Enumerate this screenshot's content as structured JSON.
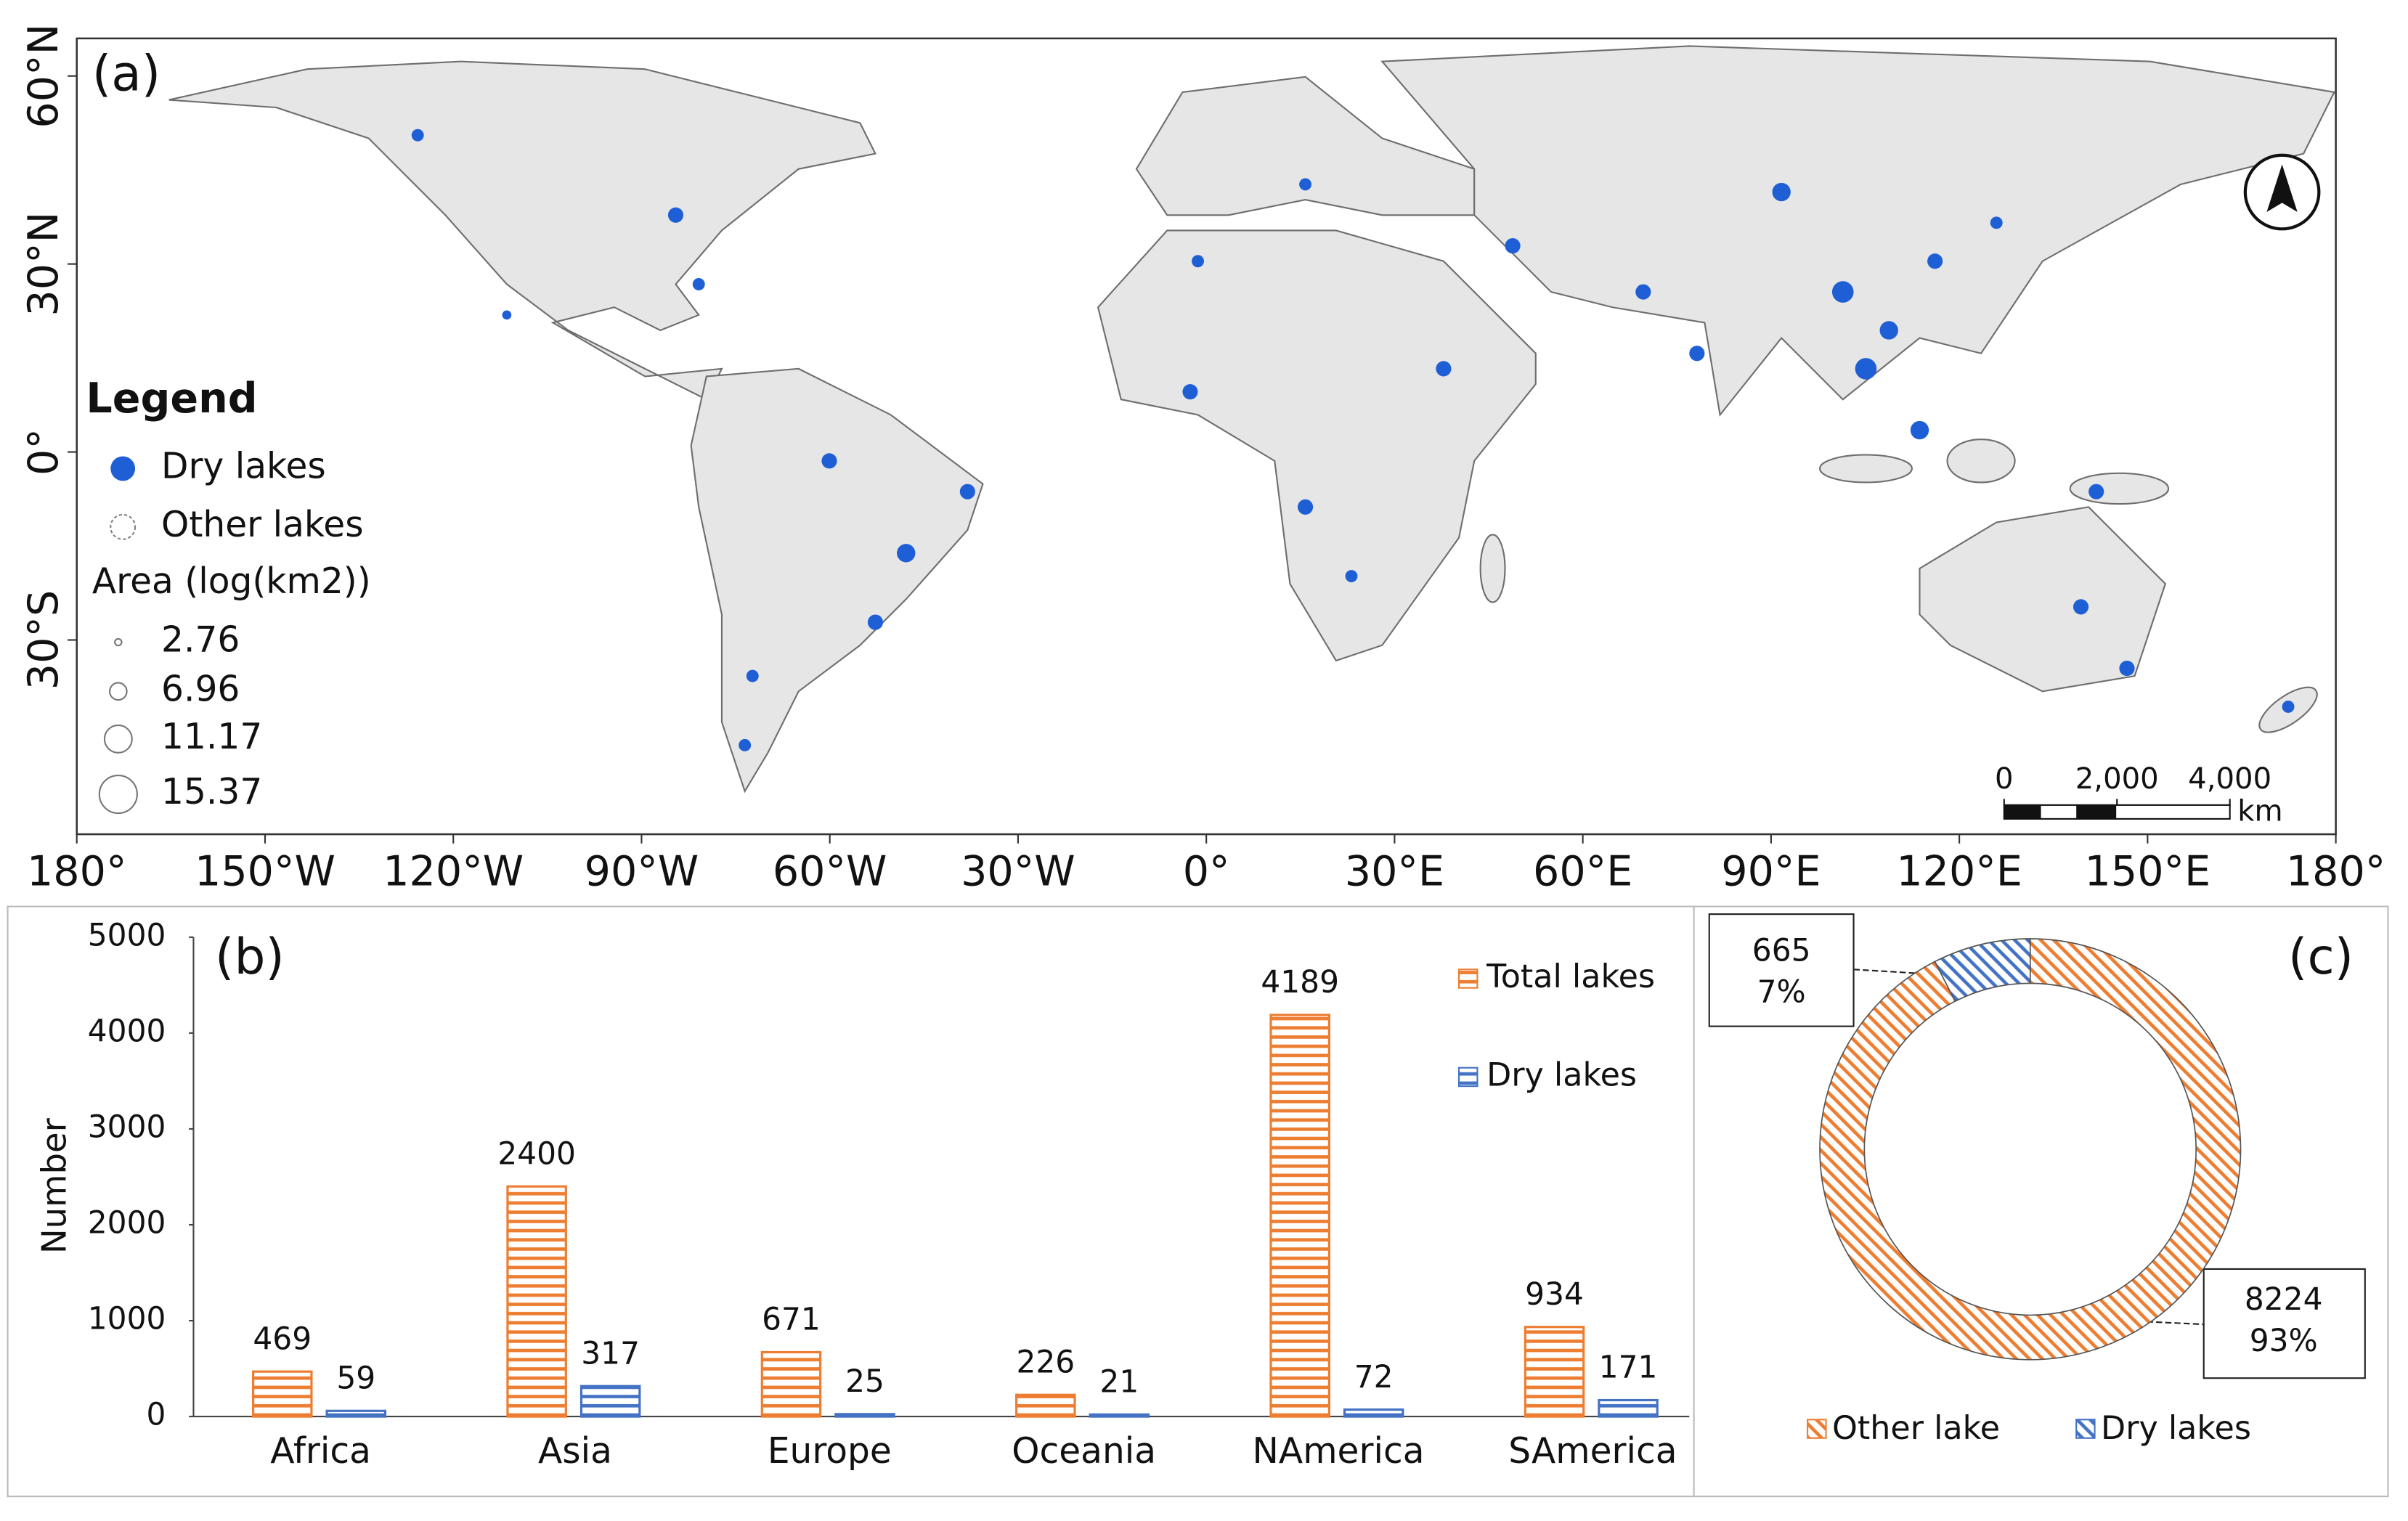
{
  "chart_data": [
    {
      "type": "map",
      "label": "(a)",
      "legend_title": "Legend",
      "legend": [
        {
          "name": "Dry lakes",
          "color": "#1f5fd6"
        },
        {
          "name": "Other lakes",
          "color": "#808080"
        }
      ],
      "size_title": "Area (log(km2))",
      "sizes": [
        2.76,
        6.96,
        11.17,
        15.37
      ],
      "xlim": [
        -180,
        180
      ],
      "ylim": [
        -61,
        66
      ],
      "xticks": [
        {
          "value": -180,
          "label": "180°"
        },
        {
          "value": -150,
          "label": "150°W"
        },
        {
          "value": -120,
          "label": "120°W"
        },
        {
          "value": -90,
          "label": "90°W"
        },
        {
          "value": -60,
          "label": "60°W"
        },
        {
          "value": -30,
          "label": "30°W"
        },
        {
          "value": 0,
          "label": "0°"
        },
        {
          "value": 30,
          "label": "30°E"
        },
        {
          "value": 60,
          "label": "60°E"
        },
        {
          "value": 90,
          "label": "90°E"
        },
        {
          "value": 120,
          "label": "120°E"
        },
        {
          "value": 150,
          "label": "150°E"
        },
        {
          "value": 180,
          "label": "180°"
        }
      ],
      "yticks": [
        {
          "value": 60,
          "label": "60°N"
        },
        {
          "value": 30,
          "label": "30°N"
        },
        {
          "value": 0,
          "label": "0°"
        },
        {
          "value": -30,
          "label": "30°S"
        }
      ],
      "scale_bar": {
        "ticks": [
          0,
          {
            "value": 2000,
            "label": "2,000"
          },
          {
            "value": 4000,
            "label": "4,000"
          }
        ],
        "unit": "km"
      }
    },
    {
      "type": "bar",
      "label": "(b)",
      "y_label": "Number",
      "categories": [
        "Africa",
        "Asia",
        "Europe",
        "Oceania",
        "NAmerica",
        "SAmerica"
      ],
      "series": [
        {
          "name": "Total lakes",
          "color": "#ed7d31",
          "values": [
            469,
            2400,
            671,
            226,
            4189,
            934
          ]
        },
        {
          "name": "Dry lakes",
          "color": "#4472c4",
          "values": [
            59,
            317,
            25,
            21,
            72,
            171
          ]
        }
      ],
      "ylim": [
        0,
        5000
      ],
      "yticks": [
        0,
        1000,
        2000,
        3000,
        4000,
        5000
      ]
    },
    {
      "type": "donut",
      "label": "(c)",
      "categories": [
        "Other lake",
        "Dry lakes"
      ],
      "values": [
        8224,
        665
      ],
      "percent_labels": [
        "93%",
        "7%"
      ],
      "colors": [
        "#ed7d31",
        "#4472c4"
      ]
    }
  ]
}
